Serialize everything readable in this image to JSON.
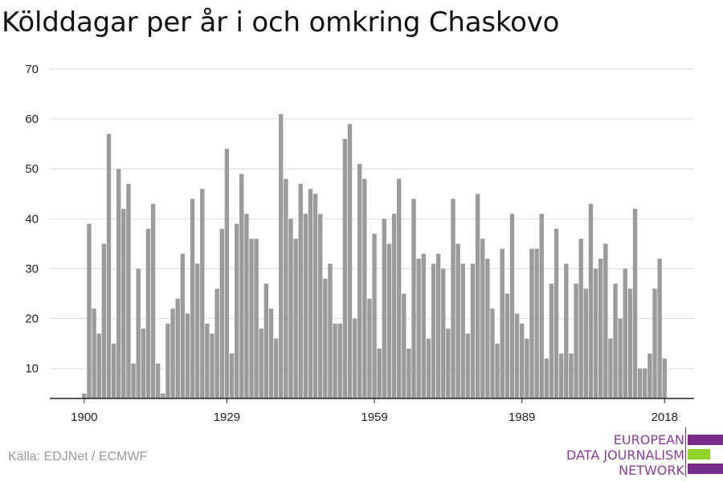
{
  "title": "Kölddagar per år i och omkring Chaskovo",
  "source": "Källa: EDJNet / ECMWF",
  "logo": {
    "line1": "EUROPEAN",
    "line2": "DATA JOURNALISM",
    "line3": "NETWORK",
    "color_purple": "#7a2e8a",
    "color_green": "#8fd32a"
  },
  "chart_data": {
    "type": "bar",
    "bar_color": "#9b9b9b",
    "ylim": [
      4,
      70
    ],
    "yticks": [
      10,
      20,
      30,
      40,
      50,
      60,
      70
    ],
    "xticks": [
      1900,
      1929,
      1959,
      1989,
      2018
    ],
    "x_range": [
      1893,
      2024
    ],
    "grid": true,
    "categories": [
      1900,
      1901,
      1902,
      1903,
      1904,
      1905,
      1906,
      1907,
      1908,
      1909,
      1910,
      1911,
      1912,
      1913,
      1914,
      1915,
      1916,
      1917,
      1918,
      1919,
      1920,
      1921,
      1922,
      1923,
      1924,
      1925,
      1926,
      1927,
      1928,
      1929,
      1930,
      1931,
      1932,
      1933,
      1934,
      1935,
      1936,
      1937,
      1938,
      1939,
      1940,
      1941,
      1942,
      1943,
      1944,
      1945,
      1946,
      1947,
      1948,
      1949,
      1950,
      1951,
      1952,
      1953,
      1954,
      1955,
      1956,
      1957,
      1958,
      1959,
      1960,
      1961,
      1962,
      1963,
      1964,
      1965,
      1966,
      1967,
      1968,
      1969,
      1970,
      1971,
      1972,
      1973,
      1974,
      1975,
      1976,
      1977,
      1978,
      1979,
      1980,
      1981,
      1982,
      1983,
      1984,
      1985,
      1986,
      1987,
      1988,
      1989,
      1990,
      1991,
      1992,
      1993,
      1994,
      1995,
      1996,
      1997,
      1998,
      1999,
      2000,
      2001,
      2002,
      2003,
      2004,
      2005,
      2006,
      2007,
      2008,
      2009,
      2010,
      2011,
      2012,
      2013,
      2014,
      2015,
      2016,
      2017,
      2018
    ],
    "values": [
      5,
      39,
      22,
      17,
      35,
      57,
      15,
      50,
      42,
      47,
      11,
      30,
      18,
      38,
      43,
      11,
      5,
      19,
      22,
      24,
      33,
      21,
      44,
      31,
      46,
      19,
      17,
      26,
      38,
      54,
      13,
      39,
      49,
      41,
      36,
      36,
      18,
      27,
      22,
      16,
      61,
      48,
      40,
      36,
      47,
      41,
      46,
      45,
      41,
      28,
      31,
      19,
      19,
      56,
      59,
      20,
      51,
      48,
      24,
      37,
      14,
      40,
      35,
      41,
      48,
      25,
      14,
      44,
      32,
      33,
      16,
      31,
      33,
      30,
      18,
      44,
      35,
      31,
      17,
      31,
      45,
      36,
      32,
      22,
      15,
      34,
      25,
      41,
      21,
      19,
      16,
      34,
      34,
      41,
      12,
      27,
      38,
      13,
      31,
      13,
      27,
      36,
      26,
      43,
      30,
      32,
      35,
      16,
      27,
      20,
      30,
      26,
      42,
      10,
      10,
      13,
      26,
      32,
      12
    ]
  }
}
